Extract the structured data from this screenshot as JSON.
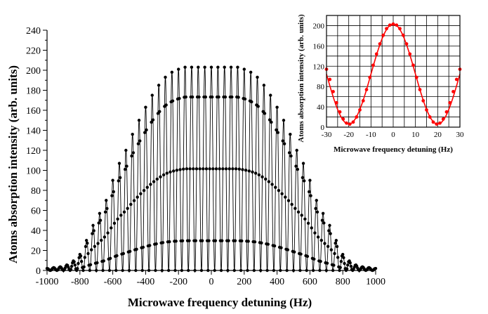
{
  "chart_data": [
    {
      "type": "line",
      "title": "",
      "xlabel": "Microwave frequency detuning (Hz)",
      "ylabel": "Atoms absorption intensity (arb. units)",
      "xlim": [
        -1000,
        1000
      ],
      "ylim": [
        0,
        240
      ],
      "xticks": [
        -1000,
        -800,
        -600,
        -400,
        -200,
        0,
        200,
        400,
        600,
        800,
        1000
      ],
      "yticks": [
        0,
        20,
        40,
        60,
        80,
        100,
        120,
        140,
        160,
        180,
        200,
        220,
        240
      ],
      "grid": false,
      "series": [
        {
          "color": "#000000",
          "marker": "circle",
          "fringe_period_hz": 40,
          "envelope_x": [
            -1000,
            -900,
            -860,
            -820,
            -790,
            -760,
            -720,
            -680,
            -640,
            -600,
            -560,
            -520,
            -480,
            -440,
            -400,
            -360,
            -320,
            -280,
            -240,
            -200,
            -160,
            0,
            160,
            200,
            240,
            280,
            320,
            360,
            400,
            440,
            480,
            520,
            560,
            600,
            640,
            680,
            720,
            760,
            790,
            820,
            860,
            900,
            1000
          ],
          "envelope_y": [
            2,
            4,
            7,
            12,
            18,
            30,
            45,
            57,
            70,
            90,
            107,
            120,
            136,
            150,
            163,
            175,
            185,
            193,
            198,
            201,
            203,
            203,
            203,
            201,
            198,
            193,
            185,
            175,
            163,
            150,
            136,
            120,
            107,
            90,
            70,
            57,
            45,
            30,
            18,
            12,
            7,
            4,
            2
          ]
        }
      ]
    },
    {
      "type": "line",
      "title": "",
      "xlabel": "Microwave frequency detuning (Hz)",
      "ylabel": "Atoms absorption intensity (arb. units)",
      "xlim": [
        -30,
        30
      ],
      "ylim": [
        0,
        220
      ],
      "xticks": [
        -30,
        -20,
        -10,
        0,
        10,
        20,
        30
      ],
      "yticks": [
        0,
        40,
        80,
        120,
        160,
        200
      ],
      "grid": true,
      "series": [
        {
          "color": "#ff0000",
          "marker": "circle",
          "x": [
            -30,
            -28.5,
            -27,
            -25.5,
            -24,
            -22.5,
            -21,
            -19.5,
            -18,
            -16.5,
            -15,
            -13.5,
            -12,
            -10.5,
            -9,
            -7.5,
            -6,
            -4.5,
            -3,
            -1.5,
            0,
            1.5,
            3,
            4.5,
            6,
            7.5,
            9,
            10.5,
            12,
            13.5,
            15,
            16.5,
            18,
            19.5,
            21,
            22.5,
            24,
            25.5,
            27,
            28.5,
            30
          ],
          "y": [
            114,
            94,
            70,
            48,
            30,
            16,
            8,
            6,
            10,
            20,
            34,
            52,
            74,
            98,
            122,
            144,
            164,
            181,
            194,
            201,
            203,
            201,
            194,
            181,
            164,
            144,
            122,
            98,
            74,
            52,
            34,
            20,
            10,
            6,
            8,
            16,
            30,
            48,
            70,
            94,
            114
          ]
        }
      ]
    }
  ]
}
